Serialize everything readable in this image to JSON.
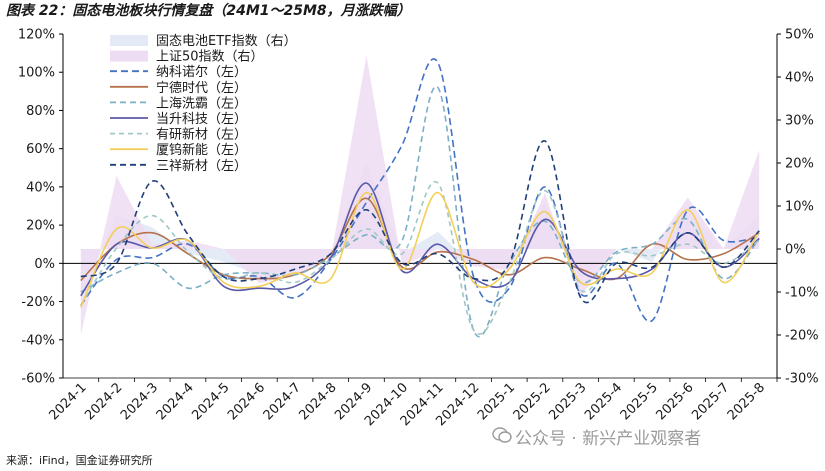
{
  "header": {
    "title": "图表 22：固态电池板块行情复盘（24M1～25M8，月涨跌幅）"
  },
  "footer": {
    "source": "来源：iFind，国金证券研究所",
    "watermark": "公众号 · 新兴产业观察者"
  },
  "chart_data": {
    "type": "line",
    "categories": [
      "2024-1",
      "2024-2",
      "2024-3",
      "2024-4",
      "2024-5",
      "2024-6",
      "2024-7",
      "2024-8",
      "2024-9",
      "2024-10",
      "2024-11",
      "2024-12",
      "2025-1",
      "2025-2",
      "2025-3",
      "2025-4",
      "2025-5",
      "2025-6",
      "2025-7",
      "2025-8"
    ],
    "left_axis": {
      "min": -60,
      "max": 120,
      "step": 20,
      "unit": "%"
    },
    "right_axis": {
      "min": -30,
      "max": 50,
      "step": 10,
      "unit": "%"
    },
    "area_series": [
      {
        "name": "固态电池ETF指数（右）",
        "axis": "right",
        "color": "#e3eaf6",
        "values": [
          -12,
          8,
          5,
          -1,
          -3,
          -6,
          -5,
          -1,
          20,
          -1,
          4,
          -4,
          -3,
          11,
          -7,
          0,
          -3,
          9,
          0,
          8
        ]
      },
      {
        "name": "上证50指数（右）",
        "axis": "right",
        "color": "#eedcf2",
        "values": [
          -20,
          17,
          1,
          2,
          0,
          -8,
          -6,
          -2,
          45,
          -4,
          0,
          -4,
          -5,
          13,
          -11,
          0,
          0,
          12,
          0,
          23
        ]
      }
    ],
    "line_series": [
      {
        "name": "纳科诺尔（左）",
        "axis": "left",
        "color": "#4472c4",
        "dash": "7,4",
        "width": 1.6,
        "values": [
          -22,
          2,
          3,
          10,
          -7,
          -7,
          -18,
          2,
          32,
          62,
          105,
          -7,
          -13,
          40,
          -16,
          0,
          -30,
          28,
          12,
          14
        ]
      },
      {
        "name": "宁德时代（左）",
        "axis": "left",
        "color": "#b5724b",
        "dash": "",
        "width": 1.6,
        "values": [
          -9,
          10,
          16,
          5,
          -6,
          -8,
          -6,
          5,
          34,
          -2,
          6,
          2,
          -6,
          3,
          -3,
          -8,
          10,
          2,
          5,
          16
        ]
      },
      {
        "name": "上海洗霸（左）",
        "axis": "left",
        "color": "#7bafc6",
        "dash": "6,4",
        "width": 1.6,
        "values": [
          -15,
          -5,
          0,
          -13,
          -6,
          -5,
          -6,
          3,
          15,
          12,
          92,
          -35,
          0,
          22,
          -10,
          6,
          10,
          23,
          -8,
          13
        ]
      },
      {
        "name": "当升科技（左）",
        "axis": "left",
        "color": "#5a59a8",
        "dash": "",
        "width": 1.6,
        "values": [
          -17,
          10,
          8,
          12,
          -12,
          -13,
          -12,
          3,
          42,
          -4,
          10,
          -8,
          -10,
          23,
          -4,
          -8,
          -3,
          16,
          -2,
          13
        ]
      },
      {
        "name": "有研新材（左）",
        "axis": "left",
        "color": "#9ec7c5",
        "dash": "5,4",
        "width": 1.6,
        "values": [
          -22,
          8,
          25,
          6,
          -8,
          -5,
          -10,
          2,
          18,
          5,
          42,
          -35,
          -10,
          38,
          -14,
          5,
          4,
          10,
          0,
          12
        ]
      },
      {
        "name": "厦钨新能（左）",
        "axis": "left",
        "color": "#f3cf59",
        "dash": "",
        "width": 1.6,
        "values": [
          -23,
          18,
          8,
          12,
          -10,
          -12,
          -5,
          -8,
          37,
          -3,
          37,
          -10,
          -3,
          27,
          -10,
          -3,
          -5,
          28,
          -10,
          17
        ]
      },
      {
        "name": "三祥新材（左）",
        "axis": "left",
        "color": "#1f3f7a",
        "dash": "6,4",
        "width": 1.6,
        "values": [
          -7,
          0,
          43,
          15,
          -7,
          -8,
          -3,
          5,
          28,
          0,
          5,
          -8,
          0,
          64,
          -18,
          0,
          -2,
          16,
          -2,
          17
        ]
      }
    ],
    "legend_position": "top-left"
  }
}
